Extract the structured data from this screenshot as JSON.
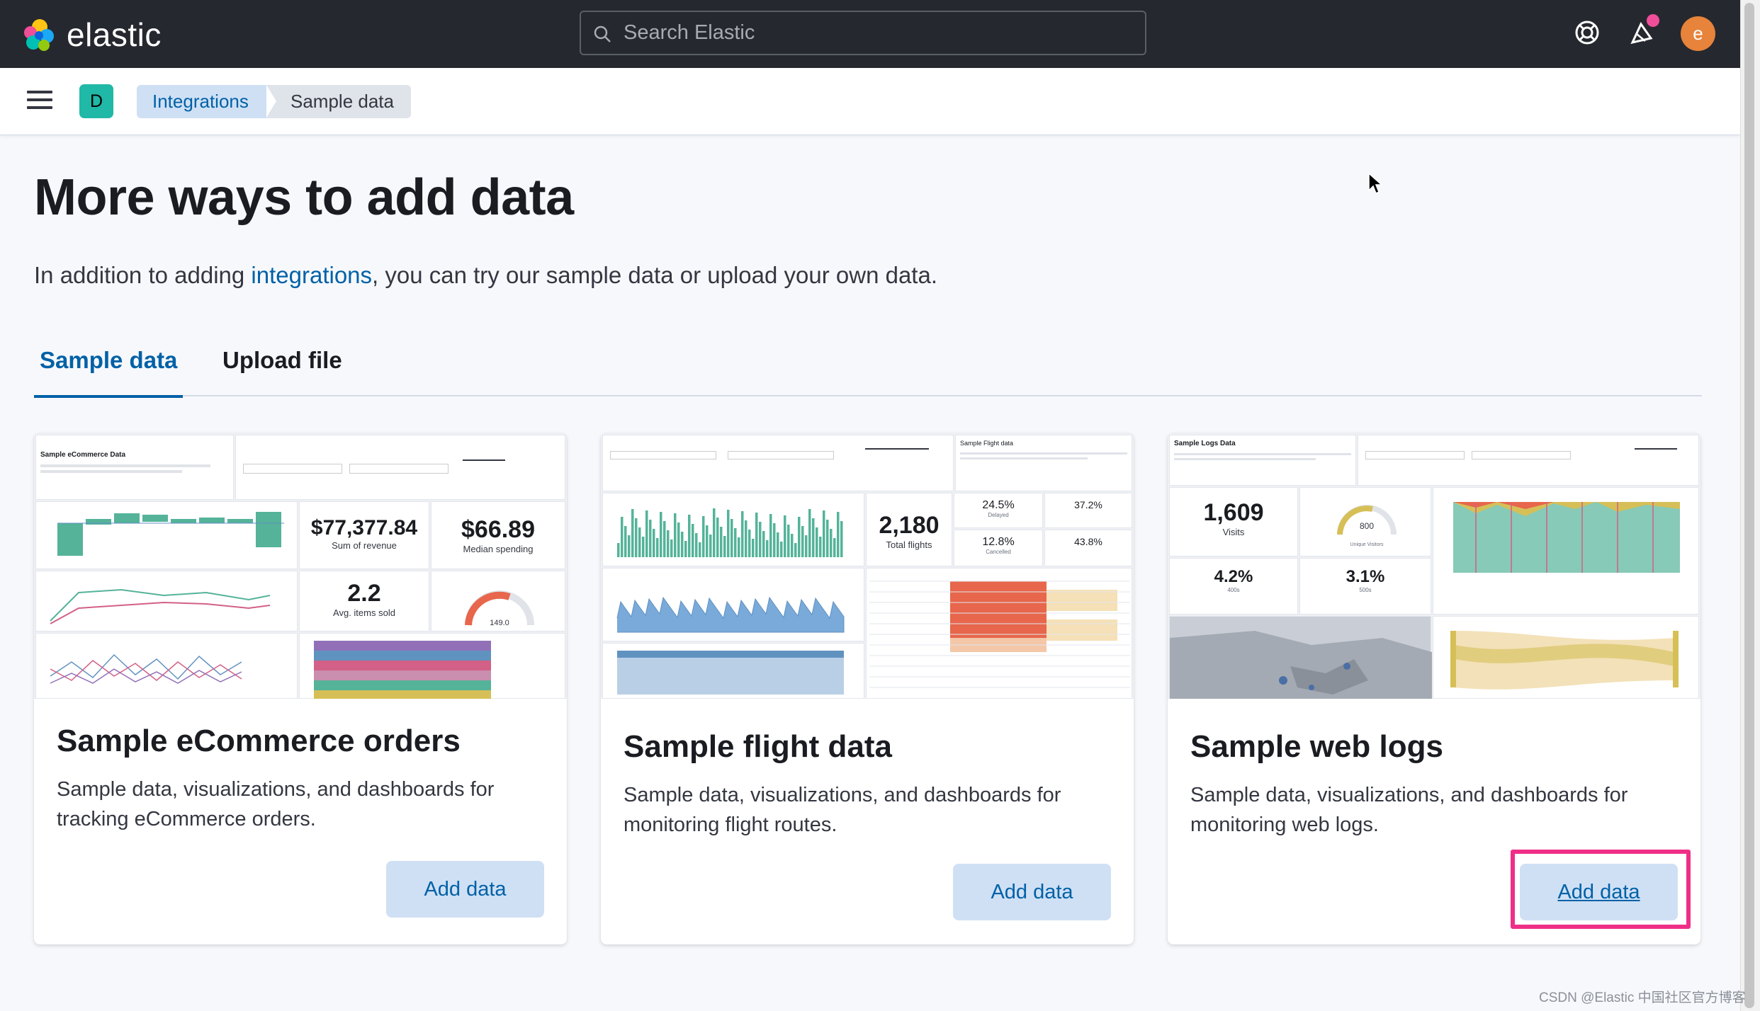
{
  "header": {
    "logo_text": "elastic",
    "search_placeholder": "Search Elastic",
    "avatar_initial": "e",
    "icons": [
      "help-icon",
      "newsfeed-icon"
    ]
  },
  "navbar": {
    "space_initial": "D",
    "breadcrumbs": [
      "Integrations",
      "Sample data"
    ]
  },
  "main": {
    "title": "More ways to add data",
    "intro_prefix": "In addition to adding ",
    "intro_link": "integrations",
    "intro_suffix": ", you can try our sample data or upload your own data.",
    "tabs": [
      "Sample data",
      "Upload file"
    ],
    "active_tab": "Sample data"
  },
  "cards": [
    {
      "title": "Sample eCommerce orders",
      "description": "Sample data, visualizations, and dashboards for tracking eCommerce orders.",
      "button": "Add data",
      "thumb": {
        "metric1": "$77,377.84",
        "metric1_label": "Sum of revenue",
        "metric2": "$66.89",
        "metric2_label": "Median spending",
        "metric3": "2.2",
        "metric3_label": "Avg. items sold",
        "gauge_value": "149.0",
        "title_text": "Sample eCommerce Data"
      }
    },
    {
      "title": "Sample flight data",
      "description": "Sample data, visualizations, and dashboards for monitoring flight routes.",
      "button": "Add data",
      "thumb": {
        "metric1": "2,180",
        "metric1_label": "Total flights",
        "pct1": "24.5%",
        "pct1_label": "Delayed",
        "pct2": "37.2%",
        "pct3": "12.8%",
        "pct3_label": "Cancelled",
        "pct4": "43.8%",
        "title_text": "Sample Flight data"
      }
    },
    {
      "title": "Sample web logs",
      "description": "Sample data, visualizations, and dashboards for monitoring web logs.",
      "button": "Add data",
      "thumb": {
        "metric1": "1,609",
        "metric1_label": "Visits",
        "gauge_value": "800",
        "gauge_label": "Unique Visitors",
        "metric2": "4.2%",
        "metric2_label": "400s",
        "metric3": "3.1%",
        "metric3_label": "500s",
        "title_text": "Sample Logs Data"
      }
    }
  ],
  "watermark": "CSDN @Elastic 中国社区官方博客",
  "colors": {
    "accent": "#0061a6",
    "highlight": "#ef2f87",
    "header_bg": "#25282f"
  }
}
